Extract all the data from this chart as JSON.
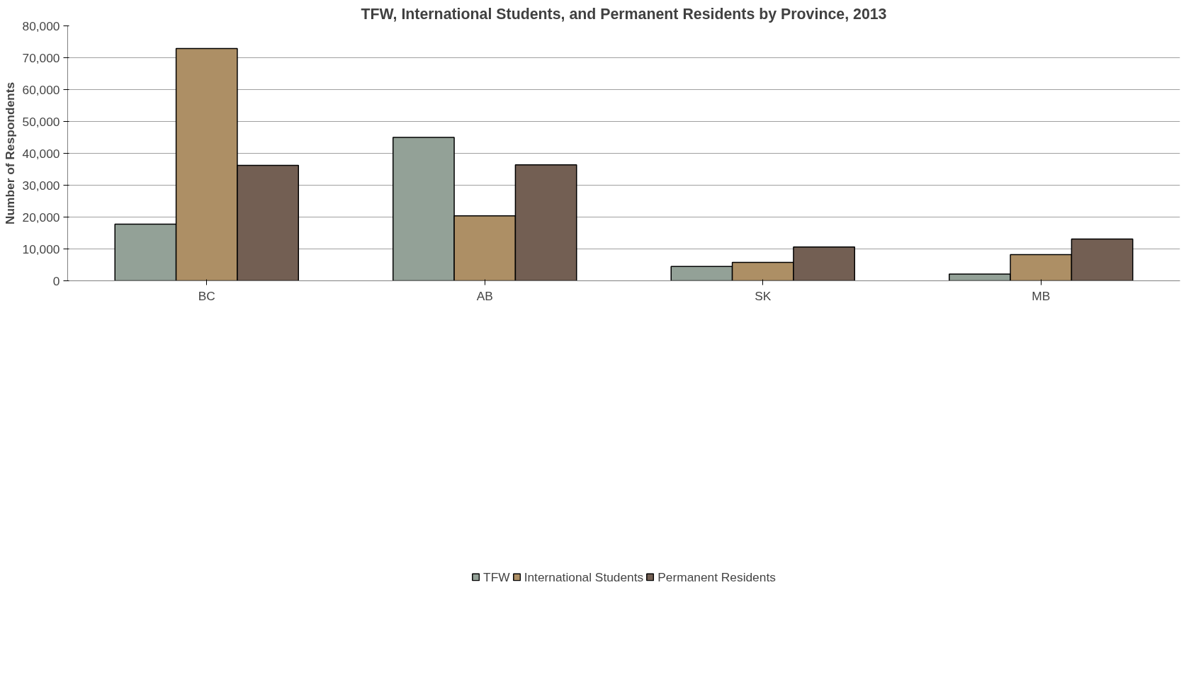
{
  "chart_data": {
    "type": "bar",
    "title": "TFW, International Students, and Permanent Residents by Province, 2013",
    "ylabel": "Number of Respondents",
    "categories": [
      "BC",
      "AB",
      "SK",
      "MB"
    ],
    "series": [
      {
        "name": "TFW",
        "color": "#93a197",
        "values": [
          17800,
          45000,
          4500,
          2100
        ]
      },
      {
        "name": "International Students",
        "color": "#ad8f65",
        "values": [
          72900,
          20400,
          5800,
          8200
        ]
      },
      {
        "name": "Permanent Residents",
        "color": "#735f53",
        "values": [
          36200,
          36400,
          10600,
          13100
        ]
      }
    ],
    "ylim": [
      0,
      80000
    ],
    "yticks": [
      0,
      {
        "value": 10000,
        "label": "10,000"
      },
      {
        "value": 20000,
        "label": "20,000"
      },
      {
        "value": 30000,
        "label": "30,000"
      },
      {
        "value": 40000,
        "label": "40,000"
      },
      {
        "value": 50000,
        "label": "50,000"
      },
      {
        "value": 60000,
        "label": "60,000"
      },
      {
        "value": 70000,
        "label": "70,000"
      },
      {
        "value": 80000,
        "label": "80,000"
      }
    ],
    "grid": "y",
    "legend": "bottom"
  }
}
